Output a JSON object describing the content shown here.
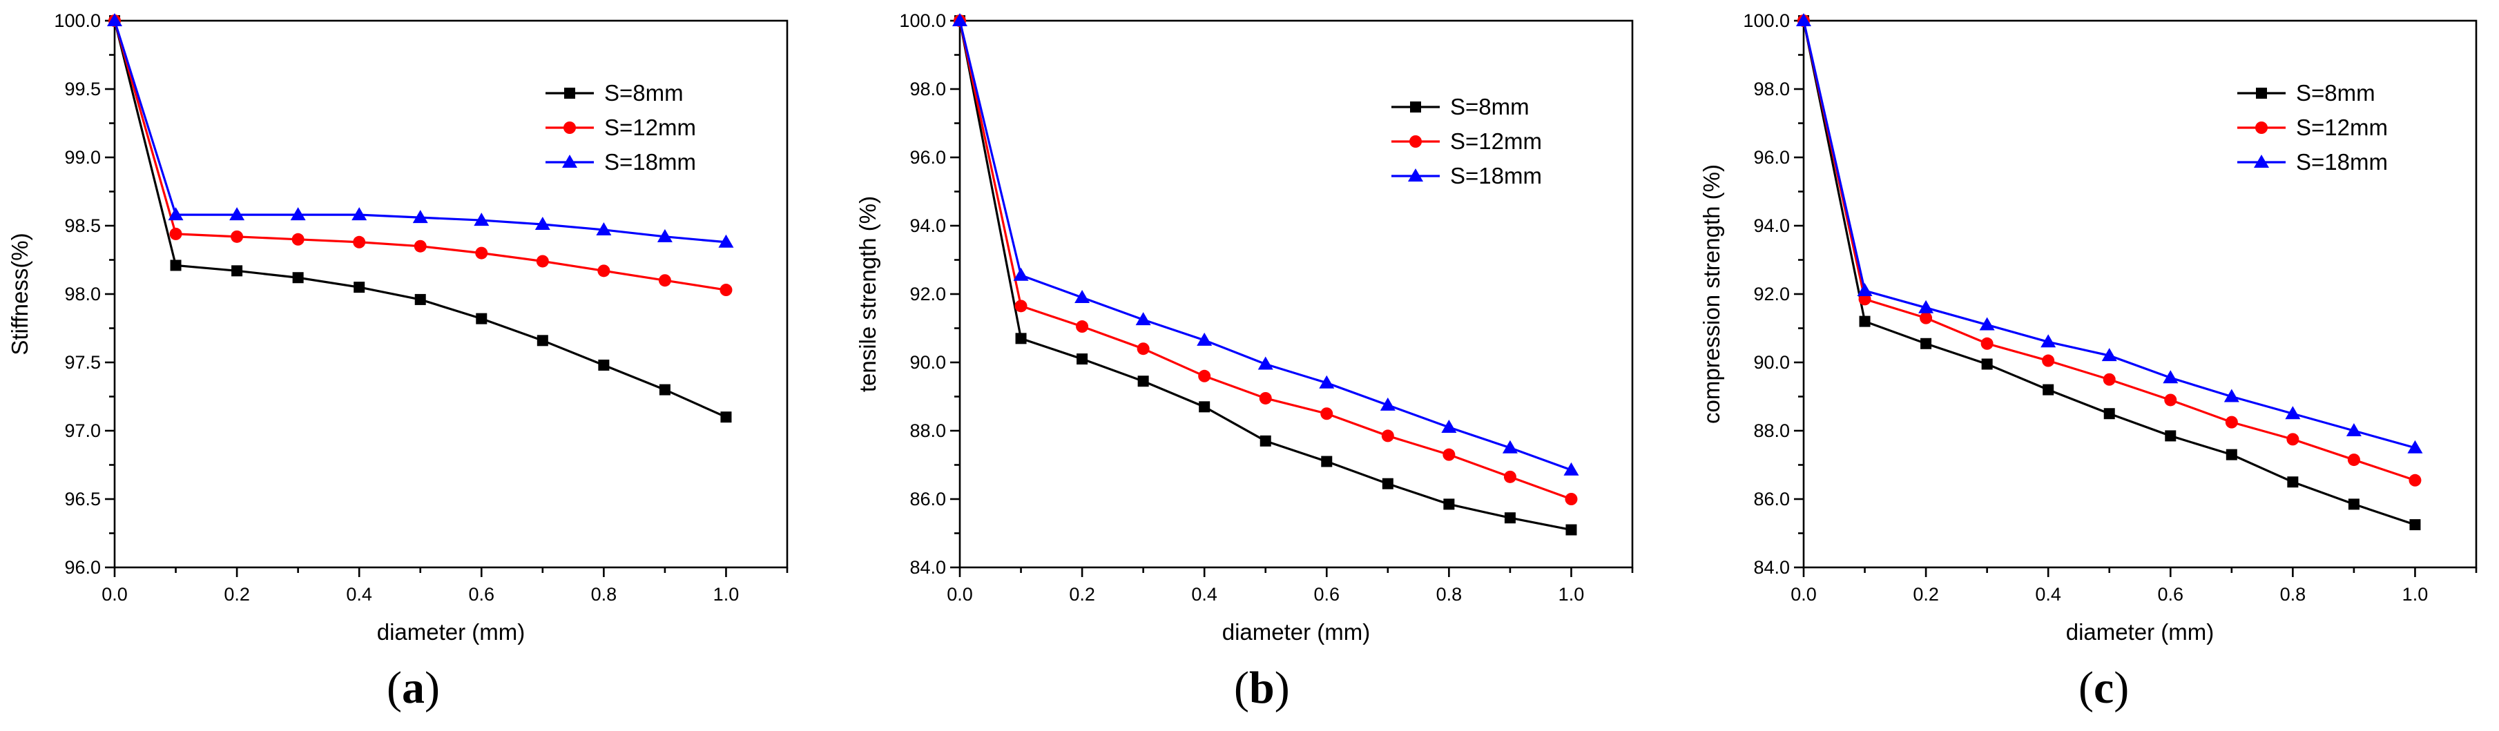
{
  "chart_data": [
    {
      "type": "line",
      "panel_label": "a",
      "title": "",
      "xlabel": "diameter (mm)",
      "ylabel": "Stiffness(%)",
      "xlim": [
        0.0,
        1.1
      ],
      "ylim": [
        96.0,
        100.0
      ],
      "xticks": [
        "0.0",
        "0.2",
        "0.4",
        "0.6",
        "0.8",
        "1.0"
      ],
      "yticks": [
        "96.0",
        "96.5",
        "97.0",
        "97.5",
        "98.0",
        "98.5",
        "99.0",
        "99.5",
        "100.0"
      ],
      "x": [
        0.0,
        0.1,
        0.2,
        0.3,
        0.4,
        0.5,
        0.6,
        0.7,
        0.8,
        0.9,
        1.0
      ],
      "series": [
        {
          "name": "S=8mm",
          "color": "#000000",
          "marker": "square",
          "values": [
            100.0,
            98.21,
            98.17,
            98.12,
            98.05,
            97.96,
            97.82,
            97.66,
            97.48,
            97.3,
            97.1
          ]
        },
        {
          "name": "S=12mm",
          "color": "#ff0000",
          "marker": "circle",
          "values": [
            100.0,
            98.44,
            98.42,
            98.4,
            98.38,
            98.35,
            98.3,
            98.24,
            98.17,
            98.1,
            98.03
          ]
        },
        {
          "name": "S=18mm",
          "color": "#0000ff",
          "marker": "triangle",
          "values": [
            100.0,
            98.58,
            98.58,
            98.58,
            98.58,
            98.56,
            98.54,
            98.51,
            98.47,
            98.42,
            98.38
          ]
        }
      ],
      "legend_position": "top-right"
    },
    {
      "type": "line",
      "panel_label": "b",
      "title": "",
      "xlabel": "diameter (mm)",
      "ylabel": "tensile strength (%)",
      "xlim": [
        0.0,
        1.1
      ],
      "ylim": [
        84.0,
        100.0
      ],
      "xticks": [
        "0.0",
        "0.2",
        "0.4",
        "0.6",
        "0.8",
        "1.0"
      ],
      "yticks": [
        "84.0",
        "86.0",
        "88.0",
        "90.0",
        "92.0",
        "94.0",
        "96.0",
        "98.0",
        "100.0"
      ],
      "x": [
        0.0,
        0.1,
        0.2,
        0.3,
        0.4,
        0.5,
        0.6,
        0.7,
        0.8,
        0.9,
        1.0
      ],
      "series": [
        {
          "name": "S=8mm",
          "color": "#000000",
          "marker": "square",
          "values": [
            100.0,
            90.7,
            90.1,
            89.45,
            88.7,
            87.7,
            87.1,
            86.45,
            85.85,
            85.45,
            85.1
          ]
        },
        {
          "name": "S=12mm",
          "color": "#ff0000",
          "marker": "circle",
          "values": [
            100.0,
            91.65,
            91.05,
            90.4,
            89.6,
            88.95,
            88.5,
            87.85,
            87.3,
            86.65,
            86.0
          ]
        },
        {
          "name": "S=18mm",
          "color": "#0000ff",
          "marker": "triangle",
          "values": [
            100.0,
            92.55,
            91.9,
            91.25,
            90.65,
            89.95,
            89.4,
            88.75,
            88.1,
            87.5,
            86.85
          ]
        }
      ],
      "legend_position": "top-right"
    },
    {
      "type": "line",
      "panel_label": "c",
      "title": "",
      "xlabel": "diameter (mm)",
      "ylabel": "compression strength (%)",
      "xlim": [
        0.0,
        1.1
      ],
      "ylim": [
        84.0,
        100.0
      ],
      "xticks": [
        "0.0",
        "0.2",
        "0.4",
        "0.6",
        "0.8",
        "1.0"
      ],
      "yticks": [
        "84.0",
        "86.0",
        "88.0",
        "90.0",
        "92.0",
        "94.0",
        "96.0",
        "98.0",
        "100.0"
      ],
      "x": [
        0.0,
        0.1,
        0.2,
        0.3,
        0.4,
        0.5,
        0.6,
        0.7,
        0.8,
        0.9,
        1.0
      ],
      "series": [
        {
          "name": "S=8mm",
          "color": "#000000",
          "marker": "square",
          "values": [
            100.0,
            91.2,
            90.55,
            89.95,
            89.2,
            88.5,
            87.85,
            87.3,
            86.5,
            85.85,
            85.25
          ]
        },
        {
          "name": "S=12mm",
          "color": "#ff0000",
          "marker": "circle",
          "values": [
            100.0,
            91.85,
            91.3,
            90.55,
            90.05,
            89.5,
            88.9,
            88.25,
            87.75,
            87.15,
            86.55
          ]
        },
        {
          "name": "S=18mm",
          "color": "#0000ff",
          "marker": "triangle",
          "values": [
            100.0,
            92.1,
            91.6,
            91.1,
            90.6,
            90.2,
            89.55,
            89.0,
            88.5,
            88.0,
            87.5
          ]
        }
      ],
      "legend_position": "top-right"
    }
  ]
}
